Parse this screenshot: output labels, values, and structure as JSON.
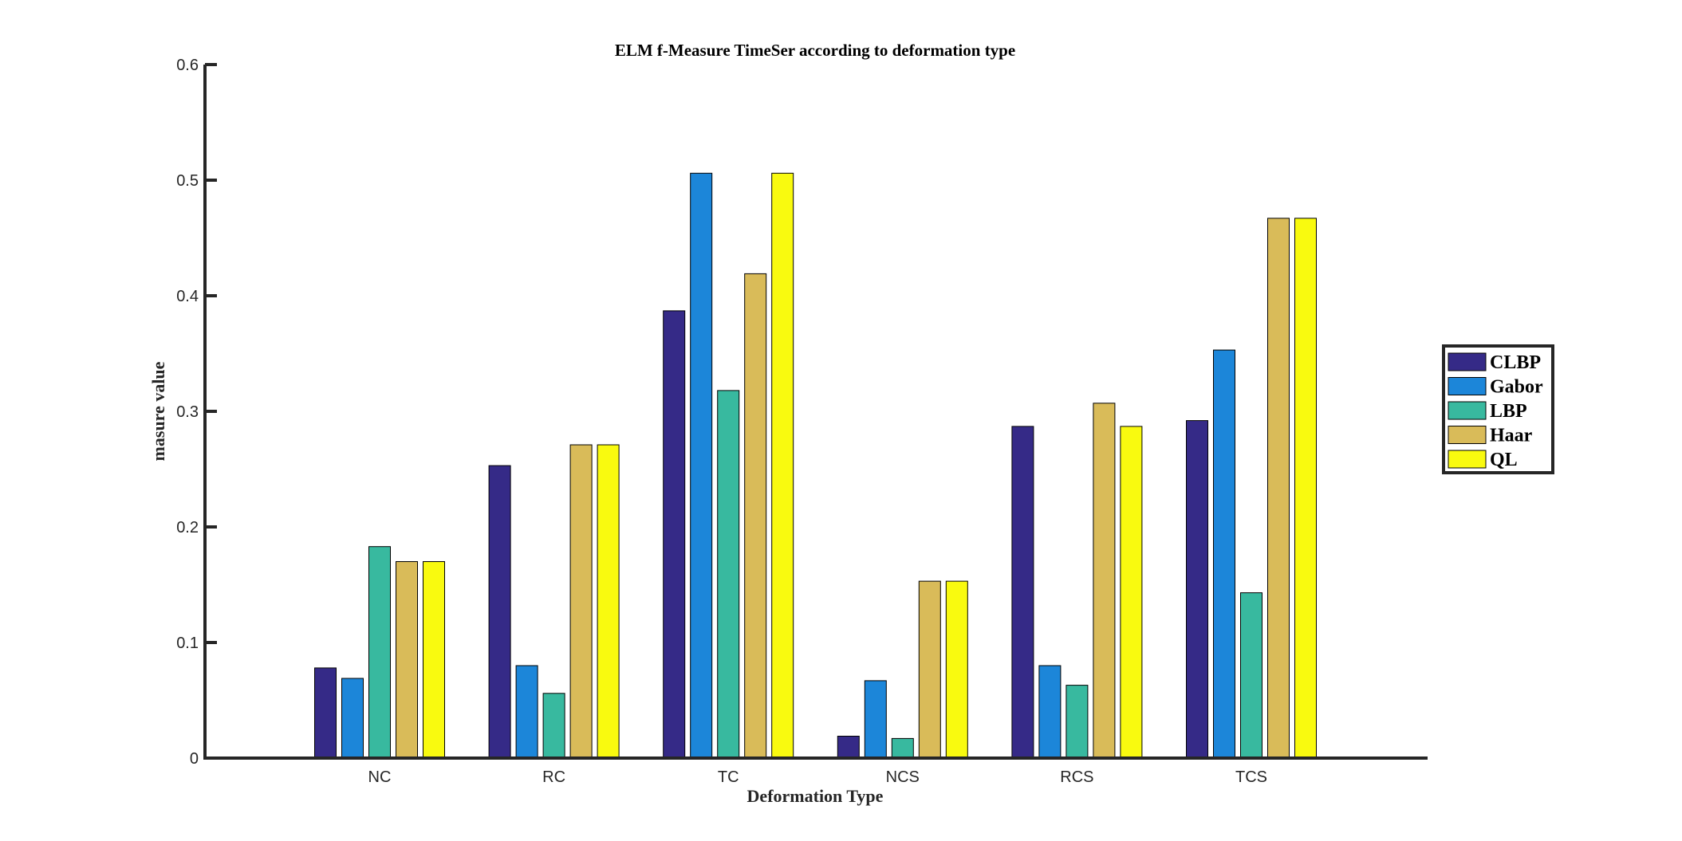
{
  "chart_data": {
    "type": "bar",
    "title": "ELM f-Measure TimeSer according to deformation type",
    "xlabel": "Deformation Type",
    "ylabel": "masure value",
    "categories": [
      "NC",
      "RC",
      "TC",
      "NCS",
      "RCS",
      "TCS"
    ],
    "ylim": [
      0,
      0.6
    ],
    "yticks": [
      "0",
      "0.1",
      "0.2",
      "0.3",
      "0.4",
      "0.5",
      "0.6"
    ],
    "legend_position": "right",
    "series": [
      {
        "name": "CLBP",
        "color": "#352a87",
        "values": [
          0.078,
          0.253,
          0.387,
          0.019,
          0.287,
          0.292
        ]
      },
      {
        "name": "Gabor",
        "color": "#1c86d9",
        "values": [
          0.069,
          0.08,
          0.506,
          0.067,
          0.08,
          0.353
        ]
      },
      {
        "name": "LBP",
        "color": "#38b99f",
        "values": [
          0.183,
          0.056,
          0.318,
          0.017,
          0.063,
          0.143
        ]
      },
      {
        "name": "Haar",
        "color": "#d9bb59",
        "values": [
          0.17,
          0.271,
          0.419,
          0.153,
          0.307,
          0.467
        ]
      },
      {
        "name": "QL",
        "color": "#f9fa0f",
        "values": [
          0.17,
          0.271,
          0.506,
          0.153,
          0.287,
          0.467
        ]
      }
    ]
  }
}
